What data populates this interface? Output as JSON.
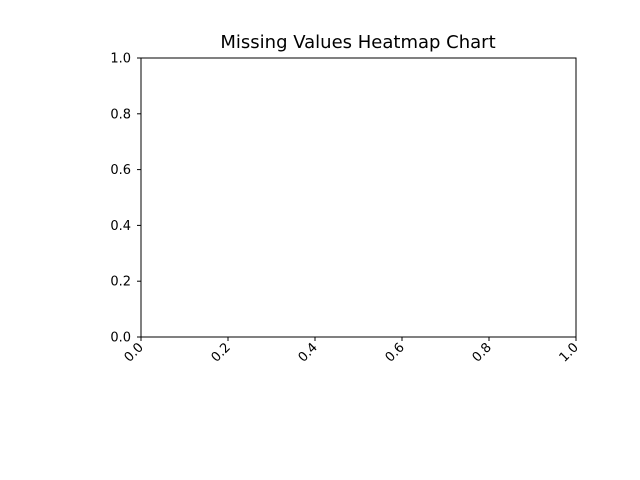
{
  "chart_data": {
    "type": "heatmap",
    "title": "Missing Values Heatmap Chart",
    "xlabel": "",
    "ylabel": "",
    "xlim": [
      0.0,
      1.0
    ],
    "ylim": [
      0.0,
      1.0
    ],
    "x_ticks": [
      "0.0",
      "0.2",
      "0.4",
      "0.6",
      "0.8",
      "1.0"
    ],
    "y_ticks": [
      "0.0",
      "0.2",
      "0.4",
      "0.6",
      "0.8",
      "1.0"
    ],
    "x_tick_rotation_deg": 45,
    "grid": false,
    "legend": "none",
    "cells": []
  },
  "colors": {
    "background": "#ffffff",
    "axis": "#000000",
    "text": "#000000"
  }
}
